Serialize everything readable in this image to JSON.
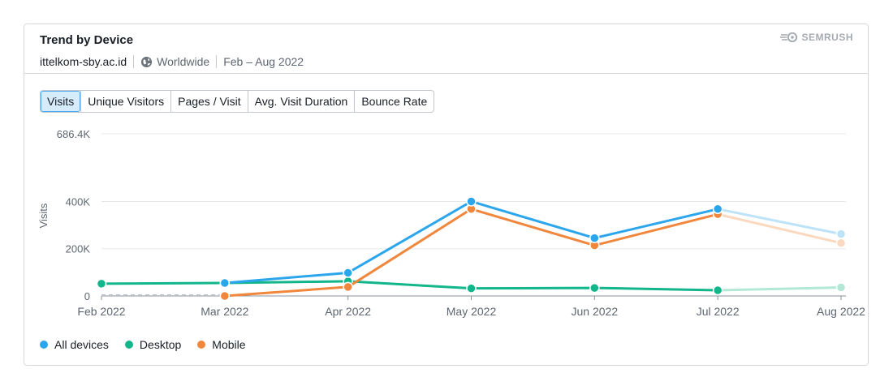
{
  "header": {
    "title": "Trend by Device",
    "domain": "ittelkom-sby.ac.id",
    "region": "Worldwide",
    "date_range": "Feb – Aug 2022",
    "brand": "SEMRUSH"
  },
  "tabs": [
    {
      "label": "Visits",
      "active": true
    },
    {
      "label": "Unique Visitors",
      "active": false
    },
    {
      "label": "Pages / Visit",
      "active": false
    },
    {
      "label": "Avg. Visit Duration",
      "active": false
    },
    {
      "label": "Bounce Rate",
      "active": false
    }
  ],
  "legend": [
    {
      "label": "All devices",
      "color": "#2ba6ec"
    },
    {
      "label": "Desktop",
      "color": "#13b68a"
    },
    {
      "label": "Mobile",
      "color": "#f0873d"
    }
  ],
  "chart_data": {
    "type": "line",
    "ylabel": "Visits",
    "ylim": [
      0,
      686400
    ],
    "y_ticks": [
      {
        "value": 0,
        "label": "0"
      },
      {
        "value": 200000,
        "label": "200K"
      },
      {
        "value": 400000,
        "label": "400K"
      },
      {
        "value": 686400,
        "label": "686.4K"
      }
    ],
    "categories": [
      "Feb 2022",
      "Mar 2022",
      "Apr 2022",
      "May 2022",
      "Jun 2022",
      "Jul 2022",
      "Aug 2022"
    ],
    "series": [
      {
        "name": "All devices",
        "color": "#2ba6ec",
        "faded_color": "#bde3f8",
        "values": [
          52000,
          55000,
          98000,
          400000,
          245000,
          368000,
          262000
        ],
        "start_index": 1
      },
      {
        "name": "Desktop",
        "color": "#13b68a",
        "faded_color": "#b3e7d6",
        "values": [
          52000,
          55000,
          62000,
          32000,
          34000,
          24000,
          36000
        ],
        "start_index": 0
      },
      {
        "name": "Mobile",
        "color": "#f0873d",
        "faded_color": "#fbd9c0",
        "values": [
          0,
          0,
          38000,
          368000,
          214000,
          346000,
          224000
        ],
        "start_index": 1
      }
    ],
    "partial_last_point": true
  }
}
